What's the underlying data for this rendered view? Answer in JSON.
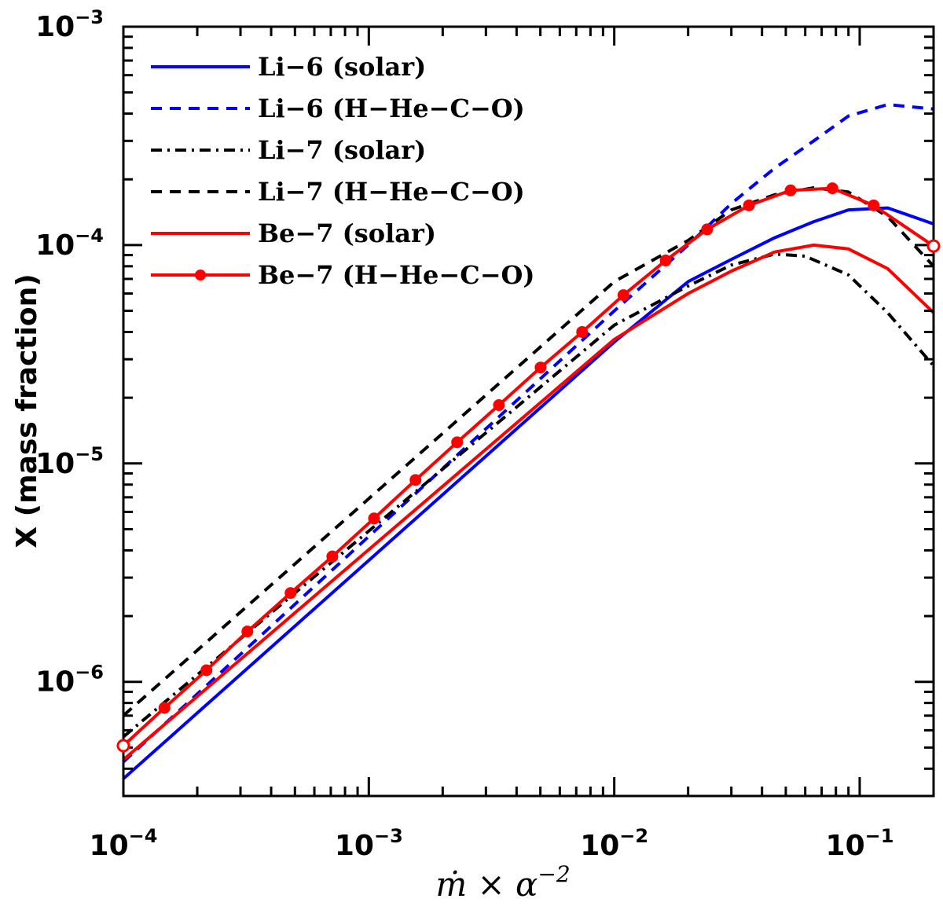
{
  "chart_data": {
    "type": "line",
    "xscale": "log",
    "yscale": "log",
    "xlim": [
      0.0001,
      0.2
    ],
    "ylim": [
      3e-07,
      0.001
    ],
    "xlabel": "ṁ × α",
    "xlabel_exponent": "−2",
    "ylabel": "X (mass fraction)",
    "x_ticks": [
      {
        "value": 0.0001,
        "base": "10",
        "exp": "−4"
      },
      {
        "value": 0.001,
        "base": "10",
        "exp": "−3"
      },
      {
        "value": 0.01,
        "base": "10",
        "exp": "−2"
      },
      {
        "value": 0.1,
        "base": "10",
        "exp": "−1"
      }
    ],
    "y_ticks": [
      {
        "value": 1e-06,
        "base": "10",
        "exp": "−6"
      },
      {
        "value": 1e-05,
        "base": "10",
        "exp": "−5"
      },
      {
        "value": 0.0001,
        "base": "10",
        "exp": "−4"
      },
      {
        "value": 0.001,
        "base": "10",
        "exp": "−3"
      }
    ],
    "legend_position": "top-left",
    "series": [
      {
        "name": "Li−6 (solar)",
        "color": "#0000ff",
        "style": "solid",
        "markers": false,
        "x": [
          0.0001,
          0.01,
          0.02,
          0.03,
          0.045,
          0.065,
          0.09,
          0.13,
          0.2
        ],
        "y": [
          3.6e-07,
          3.6e-05,
          6.8e-05,
          8.6e-05,
          0.000108,
          0.000128,
          0.000145,
          0.000148,
          0.000125
        ]
      },
      {
        "name": "Li−6 (H−He−C−O)",
        "color": "#0000ff",
        "style": "dashed",
        "markers": false,
        "x": [
          0.0001,
          0.01,
          0.02,
          0.03,
          0.045,
          0.065,
          0.09,
          0.13,
          0.2
        ],
        "y": [
          4.3e-07,
          5e-05,
          0.0001,
          0.000155,
          0.000225,
          0.0003,
          0.00039,
          0.00044,
          0.00042
        ]
      },
      {
        "name": "Li−7 (solar)",
        "color": "#000000",
        "style": "dashdot",
        "markers": false,
        "x": [
          0.0001,
          0.01,
          0.02,
          0.03,
          0.045,
          0.06,
          0.09,
          0.13,
          0.2
        ],
        "y": [
          5.6e-07,
          4.3e-05,
          6.5e-05,
          8.1e-05,
          9.1e-05,
          8.9e-05,
          7.3e-05,
          4.9e-05,
          2.8e-05
        ]
      },
      {
        "name": "Li−7 (H−He−C−O)",
        "color": "#000000",
        "style": "dashed",
        "markers": false,
        "x": [
          0.0001,
          0.01,
          0.02,
          0.03,
          0.045,
          0.065,
          0.09,
          0.13,
          0.2
        ],
        "y": [
          7e-07,
          6.8e-05,
          0.000105,
          0.000145,
          0.00017,
          0.000183,
          0.000175,
          0.000135,
          8e-05
        ]
      },
      {
        "name": "Be−7 (solar)",
        "color": "#ff0000",
        "style": "solid",
        "markers": false,
        "x": [
          0.0001,
          0.01,
          0.02,
          0.03,
          0.045,
          0.065,
          0.09,
          0.13,
          0.2
        ],
        "y": [
          4.4e-07,
          3.7e-05,
          6e-05,
          7.6e-05,
          9.3e-05,
          0.0001,
          9.6e-05,
          7.8e-05,
          4.9e-05
        ]
      },
      {
        "name": "Be−7 (H−He−C−O)",
        "color": "#ff0000",
        "style": "solid",
        "markers": true,
        "x": [
          0.0001,
          0.000147,
          0.000218,
          0.00032,
          0.00048,
          0.00071,
          0.00105,
          0.00155,
          0.00229,
          0.00339,
          0.00501,
          0.0074,
          0.0109,
          0.0162,
          0.0239,
          0.0354,
          0.0523,
          0.0774,
          0.114,
          0.2
        ],
        "y": [
          5.1e-07,
          7.6e-07,
          1.13e-06,
          1.7e-06,
          2.55e-06,
          3.75e-06,
          5.6e-06,
          8.4e-06,
          1.25e-05,
          1.85e-05,
          2.75e-05,
          4e-05,
          5.9e-05,
          8.5e-05,
          0.000118,
          0.000152,
          0.000178,
          0.000182,
          0.000152,
          9.9e-05
        ]
      }
    ]
  }
}
